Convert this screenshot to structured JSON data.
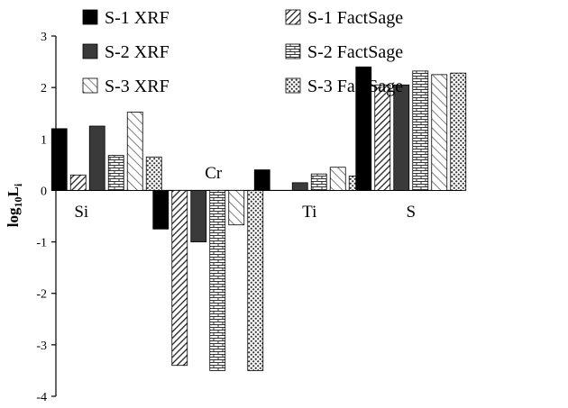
{
  "chart_data": {
    "type": "bar",
    "categories": [
      "Si",
      "Cr",
      "Ti",
      "S"
    ],
    "series": [
      {
        "name": "S-1 XRF",
        "values": [
          1.2,
          -0.75,
          0.4,
          2.4
        ],
        "pattern": "solid"
      },
      {
        "name": "S-1 FactSage",
        "values": [
          0.3,
          -3.4,
          0.0,
          2.05
        ],
        "pattern": "diagonal"
      },
      {
        "name": "S-2 XRF",
        "values": [
          1.25,
          -1.0,
          0.15,
          2.05
        ],
        "pattern": "dark"
      },
      {
        "name": "S-2 FactSage",
        "values": [
          0.68,
          -3.5,
          0.32,
          2.32
        ],
        "pattern": "brick"
      },
      {
        "name": "S-3 XRF",
        "values": [
          1.52,
          -0.67,
          0.45,
          2.25
        ],
        "pattern": "diag-light"
      },
      {
        "name": "S-3 FactSage",
        "values": [
          0.65,
          -3.5,
          0.28,
          2.28
        ],
        "pattern": "dots"
      }
    ],
    "ylabel_base": "log",
    "ylabel_sub": "10",
    "ylabel_main": "L",
    "ylabel_sub2": "i",
    "ylim": [
      -4,
      3
    ],
    "yticks": [
      "-4",
      "-3",
      "-2",
      "-1",
      "0",
      "1",
      "2",
      "3"
    ],
    "grid": false,
    "legend_position": "top",
    "colors": {
      "solid": "#000000",
      "dark": "#3a3a3a"
    }
  }
}
